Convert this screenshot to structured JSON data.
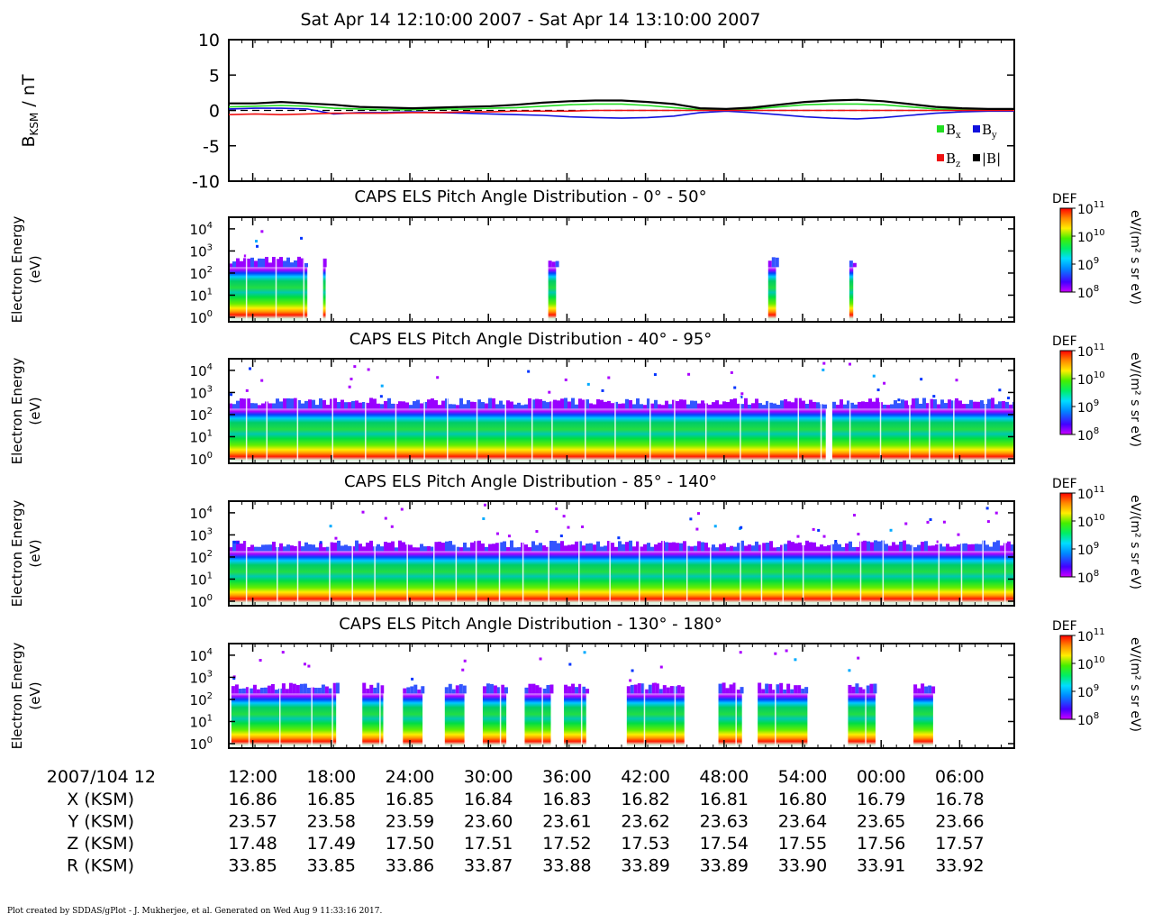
{
  "title": "Sat Apr 14 12:10:00 2007 - Sat Apr 14 13:10:00 2007",
  "footer": "Plot created by SDDAS/gPlot - J. Mukherjee, et al.  Generated on Wed Aug 9 11:33:16 2017.",
  "colors": {
    "bx": "#22dd22",
    "by": "#1010dd",
    "bz": "#ee1111",
    "bmag": "#000000",
    "frame": "#000000"
  },
  "chart_data": [
    {
      "type": "line",
      "ylabel_main": "B",
      "ylabel_sub": "KSM",
      "ylabel_unit": " / nT",
      "ylim": [
        -10,
        10
      ],
      "yticks": [
        "10",
        "5",
        "0",
        "-5",
        "-10"
      ],
      "zero_line": "dashed",
      "legend_placement": "bottom-right",
      "x_minutes": [
        0,
        2,
        4,
        6,
        8,
        10,
        12,
        14,
        16,
        18,
        20,
        22,
        24,
        26,
        28,
        30,
        32,
        34,
        36,
        38,
        40,
        42,
        44,
        46,
        48,
        50,
        52,
        54,
        56,
        58,
        60
      ],
      "series": [
        {
          "name": "B",
          "sub": "x",
          "color_key": "bx",
          "values": [
            0.5,
            0.6,
            0.7,
            0.6,
            0.3,
            0.2,
            0.1,
            0.1,
            0.2,
            0.2,
            0.3,
            0.4,
            0.6,
            0.8,
            0.9,
            0.9,
            0.7,
            0.4,
            0.1,
            0.0,
            0.2,
            0.5,
            0.8,
            0.9,
            0.9,
            0.8,
            0.5,
            0.2,
            0.1,
            0.1,
            0.1
          ]
        },
        {
          "name": "B",
          "sub": "y",
          "color_key": "by",
          "values": [
            0.2,
            0.3,
            0.3,
            0.2,
            -0.5,
            -0.3,
            -0.3,
            -0.2,
            -0.3,
            -0.4,
            -0.5,
            -0.6,
            -0.7,
            -0.9,
            -1.0,
            -1.1,
            -1.0,
            -0.8,
            -0.3,
            -0.1,
            -0.3,
            -0.6,
            -0.9,
            -1.1,
            -1.2,
            -1.0,
            -0.7,
            -0.4,
            -0.2,
            -0.1,
            -0.1
          ]
        },
        {
          "name": "B",
          "sub": "z",
          "color_key": "bz",
          "values": [
            -0.6,
            -0.5,
            -0.6,
            -0.5,
            -0.4,
            -0.4,
            -0.4,
            -0.3,
            -0.3,
            -0.2,
            -0.2,
            -0.1,
            -0.1,
            -0.1,
            0.0,
            0.0,
            0.0,
            0.0,
            0.0,
            0.0,
            0.0,
            0.0,
            0.0,
            0.0,
            0.0,
            0.0,
            0.0,
            0.0,
            0.0,
            0.0,
            0.0
          ]
        },
        {
          "name": "|B|",
          "sub": "",
          "color_key": "bmag",
          "values": [
            1.0,
            1.0,
            1.2,
            1.0,
            0.8,
            0.5,
            0.4,
            0.3,
            0.4,
            0.5,
            0.6,
            0.8,
            1.1,
            1.3,
            1.4,
            1.4,
            1.2,
            0.9,
            0.3,
            0.2,
            0.4,
            0.8,
            1.2,
            1.4,
            1.5,
            1.3,
            0.9,
            0.5,
            0.3,
            0.2,
            0.2
          ]
        }
      ]
    },
    {
      "type": "heatmap",
      "title": "CAPS ELS Pitch Angle Distribution - 0° - 50°",
      "ylabel": [
        "Electron Energy",
        "(eV)"
      ],
      "yticks_exp": [
        "4",
        "3",
        "2",
        "1",
        "0"
      ],
      "coverage_min": [
        [
          0,
          6
        ],
        [
          7.2,
          7.4
        ],
        [
          24.4,
          25.0
        ],
        [
          41.2,
          41.8
        ],
        [
          47.4,
          47.7
        ]
      ],
      "colorbar": {
        "label": "DEF",
        "unit": "eV/(m² s sr eV)",
        "ticks_exp": [
          "11",
          "10",
          "9",
          "8"
        ]
      }
    },
    {
      "type": "heatmap",
      "title": "CAPS ELS Pitch Angle Distribution - 40° - 95°",
      "ylabel": [
        "Electron Energy",
        "(eV)"
      ],
      "yticks_exp": [
        "4",
        "3",
        "2",
        "1",
        "0"
      ],
      "coverage_min": [
        [
          0,
          45.6
        ],
        [
          46.1,
          60
        ]
      ],
      "colorbar": {
        "label": "DEF",
        "unit": "eV/(m² s sr eV)",
        "ticks_exp": [
          "11",
          "10",
          "9",
          "8"
        ]
      }
    },
    {
      "type": "heatmap",
      "title": "CAPS ELS Pitch Angle Distribution - 85° - 140°",
      "ylabel": [
        "Electron Energy",
        "(eV)"
      ],
      "yticks_exp": [
        "4",
        "3",
        "2",
        "1",
        "0"
      ],
      "coverage_min": [
        [
          0,
          60
        ]
      ],
      "colorbar": {
        "label": "DEF",
        "unit": "eV/(m² s sr eV)",
        "ticks_exp": [
          "11",
          "10",
          "9",
          "8"
        ]
      }
    },
    {
      "type": "heatmap",
      "title": "CAPS ELS Pitch Angle Distribution - 130° - 180°",
      "ylabel": [
        "Electron Energy",
        "(eV)"
      ],
      "yticks_exp": [
        "4",
        "3",
        "2",
        "1",
        "0"
      ],
      "coverage_min": [
        [
          0.2,
          8.2
        ],
        [
          10.2,
          11.8
        ],
        [
          13.3,
          14.8
        ],
        [
          16.5,
          18.0
        ],
        [
          19.4,
          21.2
        ],
        [
          22.6,
          24.6
        ],
        [
          25.6,
          27.3
        ],
        [
          30.4,
          34.8
        ],
        [
          37.4,
          39.2
        ],
        [
          40.4,
          44.2
        ],
        [
          47.3,
          49.4
        ],
        [
          52.3,
          53.8
        ]
      ],
      "colorbar": {
        "label": "DEF",
        "unit": "eV/(m² s sr eV)",
        "ticks_exp": [
          "11",
          "10",
          "9",
          "8"
        ]
      }
    }
  ],
  "time_axis": {
    "start_label": "2007/104 12",
    "tick_labels": [
      "12:00",
      "18:00",
      "24:00",
      "30:00",
      "36:00",
      "42:00",
      "48:00",
      "54:00",
      "00:00",
      "06:00"
    ],
    "rows": [
      {
        "label": "X (KSM)",
        "values": [
          "16.86",
          "16.85",
          "16.85",
          "16.84",
          "16.83",
          "16.82",
          "16.81",
          "16.80",
          "16.79",
          "16.78"
        ]
      },
      {
        "label": "Y (KSM)",
        "values": [
          "23.57",
          "23.58",
          "23.59",
          "23.60",
          "23.61",
          "23.62",
          "23.63",
          "23.64",
          "23.65",
          "23.66"
        ]
      },
      {
        "label": "Z (KSM)",
        "values": [
          "17.48",
          "17.49",
          "17.50",
          "17.51",
          "17.52",
          "17.53",
          "17.54",
          "17.55",
          "17.56",
          "17.57"
        ]
      },
      {
        "label": "R (KSM)",
        "values": [
          "33.85",
          "33.85",
          "33.86",
          "33.87",
          "33.88",
          "33.89",
          "33.89",
          "33.90",
          "33.91",
          "33.92"
        ]
      }
    ]
  }
}
